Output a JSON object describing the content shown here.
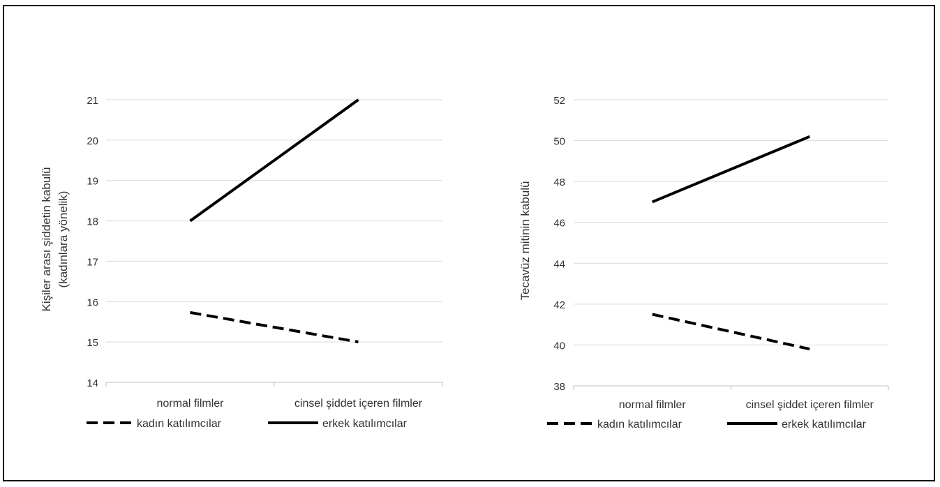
{
  "chart_data": [
    {
      "type": "line",
      "title": "",
      "xlabel": "",
      "ylabel": [
        "Kişiler arası şiddetin kabulü",
        "(kadınlara yönelik)"
      ],
      "categories": [
        "normal filmler",
        "cinsel şiddet içeren filmler"
      ],
      "ylim": [
        14,
        21
      ],
      "yticks": [
        14,
        15,
        16,
        17,
        18,
        19,
        20,
        21
      ],
      "grid": true,
      "legend_position": "bottom",
      "series": [
        {
          "name": "kadın katılımcılar",
          "style": "dashed",
          "color": "#000000",
          "values": [
            15.73,
            15.0
          ]
        },
        {
          "name": "erkek katılımcılar",
          "style": "solid",
          "color": "#000000",
          "values": [
            18.0,
            21.0
          ]
        }
      ]
    },
    {
      "type": "line",
      "title": "",
      "xlabel": "",
      "ylabel": [
        "Tecavüz mitinin kabulü"
      ],
      "categories": [
        "normal filmler",
        "cinsel şiddet içeren filmler"
      ],
      "ylim": [
        38,
        52
      ],
      "yticks": [
        38,
        40,
        42,
        44,
        46,
        48,
        50,
        52
      ],
      "grid": true,
      "legend_position": "bottom",
      "series": [
        {
          "name": "kadın katılımcılar",
          "style": "dashed",
          "color": "#000000",
          "values": [
            41.5,
            39.8
          ]
        },
        {
          "name": "erkek katılımcılar",
          "style": "solid",
          "color": "#000000",
          "values": [
            47.0,
            50.2
          ]
        }
      ]
    }
  ]
}
